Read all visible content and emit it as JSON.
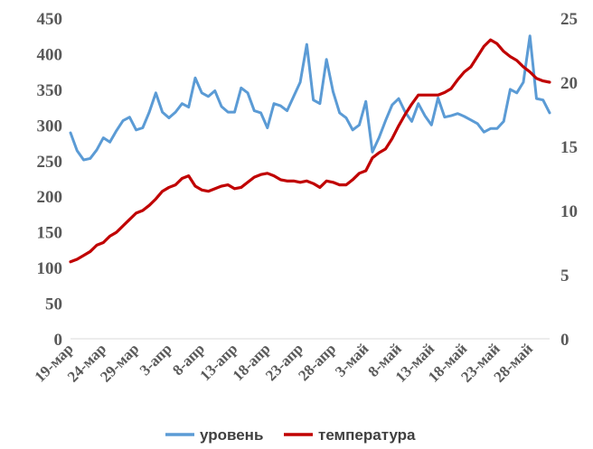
{
  "chart_data": {
    "type": "line",
    "x": [
      "19-мар",
      "20-мар",
      "21-мар",
      "22-мар",
      "23-мар",
      "24-мар",
      "25-мар",
      "26-мар",
      "27-мар",
      "28-мар",
      "29-мар",
      "30-мар",
      "31-мар",
      "1-апр",
      "2-апр",
      "3-апр",
      "4-апр",
      "5-апр",
      "6-апр",
      "7-апр",
      "8-апр",
      "9-апр",
      "10-апр",
      "11-апр",
      "12-апр",
      "13-апр",
      "14-апр",
      "15-апр",
      "16-апр",
      "17-апр",
      "18-апр",
      "19-апр",
      "20-апр",
      "21-апр",
      "22-апр",
      "23-апр",
      "24-апр",
      "25-апр",
      "26-апр",
      "27-апр",
      "28-апр",
      "29-апр",
      "30-апр",
      "1-май",
      "2-май",
      "3-май",
      "4-май",
      "5-май",
      "6-май",
      "7-май",
      "8-май",
      "9-май",
      "10-май",
      "11-май",
      "12-май",
      "13-май",
      "14-май",
      "15-май",
      "16-май",
      "17-май",
      "18-май",
      "19-май",
      "20-май",
      "21-май",
      "22-май",
      "23-май",
      "24-май",
      "25-май",
      "26-май",
      "27-май",
      "28-май",
      "29-май",
      "30-май",
      "31-май"
    ],
    "x_tick_labels": [
      "19-мар",
      "24-мар",
      "29-мар",
      "3-апр",
      "8-апр",
      "13-апр",
      "18-апр",
      "23-апр",
      "28-апр",
      "3-май",
      "8-май",
      "13-май",
      "18-май",
      "23-май",
      "28-май"
    ],
    "series": [
      {
        "name": "уровень",
        "axis": "left",
        "color": "#5b9bd5",
        "values": [
          289,
          264,
          251,
          253,
          265,
          282,
          276,
          292,
          306,
          311,
          293,
          296,
          318,
          345,
          318,
          310,
          318,
          330,
          325,
          366,
          345,
          340,
          348,
          326,
          318,
          318,
          352,
          345,
          320,
          317,
          296,
          330,
          327,
          320,
          340,
          360,
          413,
          335,
          330,
          392,
          347,
          317,
          310,
          293,
          300,
          333,
          262,
          282,
          306,
          328,
          337,
          318,
          305,
          330,
          313,
          300,
          338,
          311,
          313,
          316,
          312,
          307,
          302,
          290,
          295,
          295,
          305,
          350,
          345,
          360,
          425,
          337,
          335,
          317
        ]
      },
      {
        "name": "температура",
        "axis": "right",
        "color": "#c00000",
        "values": [
          6.0,
          6.2,
          6.5,
          6.8,
          7.3,
          7.5,
          8.0,
          8.3,
          8.8,
          9.3,
          9.8,
          10.0,
          10.4,
          10.9,
          11.5,
          11.8,
          12.0,
          12.5,
          12.7,
          11.9,
          11.6,
          11.5,
          11.7,
          11.9,
          12.0,
          11.7,
          11.8,
          12.2,
          12.6,
          12.8,
          12.9,
          12.7,
          12.4,
          12.3,
          12.3,
          12.2,
          12.3,
          12.1,
          11.8,
          12.3,
          12.2,
          12.0,
          12.0,
          12.4,
          12.9,
          13.1,
          14.1,
          14.5,
          14.8,
          15.6,
          16.6,
          17.5,
          18.3,
          19.0,
          19.0,
          19.0,
          19.0,
          19.2,
          19.5,
          20.2,
          20.8,
          21.2,
          22.0,
          22.8,
          23.3,
          23.0,
          22.4,
          22.0,
          21.7,
          21.2,
          20.8,
          20.3,
          20.1,
          20.0
        ]
      }
    ],
    "y_left": {
      "min": 0,
      "max": 450,
      "step": 50,
      "ticks": [
        "0",
        "50",
        "100",
        "150",
        "200",
        "250",
        "300",
        "350",
        "400",
        "450"
      ]
    },
    "y_right": {
      "min": 0,
      "max": 25,
      "step": 5,
      "ticks": [
        "0",
        "5",
        "10",
        "15",
        "20",
        "25"
      ]
    },
    "grid": false,
    "legend_position": "bottom",
    "title": "",
    "xlabel": "",
    "ylabel": ""
  }
}
